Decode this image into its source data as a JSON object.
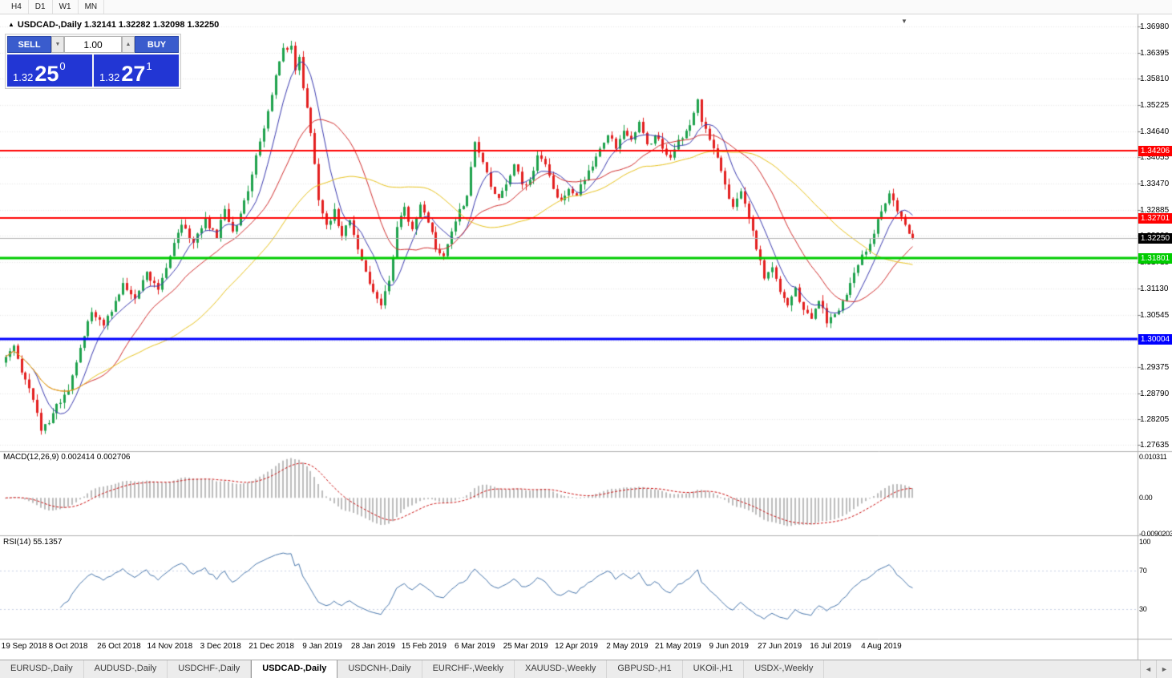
{
  "toolbar": {
    "timeframes": [
      "H4",
      "D1",
      "W1",
      "MN"
    ]
  },
  "chart_header": {
    "arrow": "▲",
    "title": "USDCAD-,Daily  1.32141 1.32282 1.32098 1.32250",
    "shift_marker": "▼"
  },
  "trade_panel": {
    "sell_label": "SELL",
    "buy_label": "BUY",
    "volume": "1.00",
    "spinner_down": "▼",
    "spinner_up": "▲",
    "sell_price": {
      "prefix": "1.32",
      "big": "25",
      "sup": "0"
    },
    "buy_price": {
      "prefix": "1.32",
      "big": "27",
      "sup": "1"
    }
  },
  "price_scale": {
    "labels": [
      "1.36980",
      "1.36395",
      "1.35810",
      "1.35225",
      "1.34640",
      "1.34055",
      "1.33470",
      "1.32885",
      "1.32300",
      "1.31715",
      "1.31130",
      "1.30545",
      "1.29960",
      "1.29375",
      "1.28790",
      "1.28205",
      "1.27635"
    ],
    "current_price_tag": {
      "label": "1.32250",
      "price": 1.3225,
      "bg": "#000000"
    }
  },
  "levels": [
    {
      "label": "1.34206",
      "price": 1.34206,
      "color": "#ff0000",
      "width": 2
    },
    {
      "label": "1.32701",
      "price": 1.32701,
      "color": "#ff0000",
      "width": 2
    },
    {
      "label": "1.31801",
      "price": 1.31801,
      "color": "#00cc00",
      "width": 3
    },
    {
      "label": "1.30004",
      "price": 1.30004,
      "color": "#0000ff",
      "width": 3
    }
  ],
  "indicators": {
    "macd": {
      "label": "MACD(12,26,9) 0.002414 0.002706",
      "scale_labels": [
        "0.010311",
        "0.00",
        "-0.0090203"
      ],
      "histogram_color": "#bdbdbd",
      "signal_color": "#cc1111"
    },
    "rsi": {
      "label": "RSI(14) 55.1357",
      "scale_labels": [
        "100",
        "70",
        "30"
      ],
      "line_color": "#4a78ad",
      "levels": [
        70,
        30
      ]
    }
  },
  "time_axis": {
    "dates": [
      "19 Sep 2018",
      "8 Oct 2018",
      "26 Oct 2018",
      "14 Nov 2018",
      "3 Dec 2018",
      "21 Dec 2018",
      "9 Jan 2019",
      "28 Jan 2019",
      "15 Feb 2019",
      "6 Mar 2019",
      "25 Mar 2019",
      "12 Apr 2019",
      "2 May 2019",
      "21 May 2019",
      "9 Jun 2019",
      "27 Jun 2019",
      "16 Jul 2019",
      "4 Aug 2019"
    ],
    "date_bar_indices": [
      3,
      16,
      29,
      42,
      55,
      68,
      81,
      94,
      107,
      120,
      133,
      146,
      159,
      172,
      185,
      198,
      211,
      224
    ]
  },
  "chart_data": {
    "type": "candlestick",
    "symbol": "USDCAD",
    "timeframe": "Daily",
    "ohlc_today": {
      "open": 1.32141,
      "high": 1.32282,
      "low": 1.32098,
      "close": 1.3225
    },
    "y_axis_range": [
      1.2753,
      1.3718
    ],
    "bar_count": 233,
    "up_color": "#1fa24d",
    "down_color": "#e32020",
    "moving_averages": [
      {
        "period": 8,
        "color": "#3b3bb0"
      },
      {
        "period": 21,
        "color": "#d23030"
      },
      {
        "period": 45,
        "color": "#e8c31e"
      }
    ],
    "close_keypoints": [
      [
        0,
        1.296
      ],
      [
        2,
        1.2985
      ],
      [
        4,
        1.2925
      ],
      [
        6,
        1.289
      ],
      [
        8,
        1.2835
      ],
      [
        9,
        1.2795
      ],
      [
        11,
        1.2812
      ],
      [
        13,
        1.2855
      ],
      [
        16,
        1.2885
      ],
      [
        19,
        1.298
      ],
      [
        22,
        1.306
      ],
      [
        25,
        1.303
      ],
      [
        28,
        1.3085
      ],
      [
        30,
        1.3125
      ],
      [
        33,
        1.309
      ],
      [
        36,
        1.315
      ],
      [
        39,
        1.311
      ],
      [
        42,
        1.3185
      ],
      [
        45,
        1.3255
      ],
      [
        48,
        1.3215
      ],
      [
        51,
        1.327
      ],
      [
        54,
        1.3225
      ],
      [
        56,
        1.329
      ],
      [
        58,
        1.324
      ],
      [
        60,
        1.328
      ],
      [
        62,
        1.333
      ],
      [
        64,
        1.341
      ],
      [
        66,
        1.347
      ],
      [
        68,
        1.3545
      ],
      [
        70,
        1.362
      ],
      [
        71,
        1.365
      ],
      [
        73,
        1.3655
      ],
      [
        74,
        1.36
      ],
      [
        75,
        1.363
      ],
      [
        76,
        1.356
      ],
      [
        78,
        1.346
      ],
      [
        80,
        1.331
      ],
      [
        82,
        1.3255
      ],
      [
        84,
        1.329
      ],
      [
        86,
        1.323
      ],
      [
        88,
        1.3265
      ],
      [
        90,
        1.32
      ],
      [
        92,
        1.315
      ],
      [
        94,
        1.3105
      ],
      [
        96,
        1.3075
      ],
      [
        98,
        1.313
      ],
      [
        100,
        1.325
      ],
      [
        102,
        1.3295
      ],
      [
        104,
        1.3245
      ],
      [
        106,
        1.33
      ],
      [
        108,
        1.326
      ],
      [
        110,
        1.32
      ],
      [
        112,
        1.3185
      ],
      [
        114,
        1.324
      ],
      [
        116,
        1.329
      ],
      [
        118,
        1.332
      ],
      [
        120,
        1.344
      ],
      [
        122,
        1.3395
      ],
      [
        124,
        1.334
      ],
      [
        126,
        1.3315
      ],
      [
        128,
        1.3345
      ],
      [
        130,
        1.339
      ],
      [
        132,
        1.3345
      ],
      [
        134,
        1.3355
      ],
      [
        136,
        1.341
      ],
      [
        138,
        1.339
      ],
      [
        140,
        1.3335
      ],
      [
        142,
        1.331
      ],
      [
        144,
        1.3335
      ],
      [
        146,
        1.332
      ],
      [
        148,
        1.3355
      ],
      [
        150,
        1.3385
      ],
      [
        152,
        1.3425
      ],
      [
        154,
        1.3455
      ],
      [
        156,
        1.3425
      ],
      [
        158,
        1.3465
      ],
      [
        160,
        1.3445
      ],
      [
        162,
        1.3485
      ],
      [
        164,
        1.3435
      ],
      [
        166,
        1.3455
      ],
      [
        168,
        1.3425
      ],
      [
        170,
        1.3405
      ],
      [
        172,
        1.3445
      ],
      [
        174,
        1.3465
      ],
      [
        176,
        1.3505
      ],
      [
        177,
        1.3535
      ],
      [
        178,
        1.3485
      ],
      [
        180,
        1.3445
      ],
      [
        182,
        1.3405
      ],
      [
        184,
        1.3345
      ],
      [
        186,
        1.3295
      ],
      [
        188,
        1.333
      ],
      [
        190,
        1.327
      ],
      [
        192,
        1.32
      ],
      [
        194,
        1.3135
      ],
      [
        196,
        1.316
      ],
      [
        198,
        1.3105
      ],
      [
        200,
        1.3075
      ],
      [
        202,
        1.3115
      ],
      [
        204,
        1.3065
      ],
      [
        206,
        1.3045
      ],
      [
        208,
        1.3085
      ],
      [
        210,
        1.3035
      ],
      [
        212,
        1.3055
      ],
      [
        214,
        1.3085
      ],
      [
        216,
        1.3125
      ],
      [
        218,
        1.3165
      ],
      [
        220,
        1.3195
      ],
      [
        222,
        1.3235
      ],
      [
        224,
        1.3285
      ],
      [
        226,
        1.3325
      ],
      [
        228,
        1.3285
      ],
      [
        230,
        1.3255
      ],
      [
        231,
        1.3235
      ],
      [
        232,
        1.3225
      ]
    ]
  },
  "bottom_tabs": {
    "items": [
      "EURUSD-,Daily",
      "AUDUSD-,Daily",
      "USDCHF-,Daily",
      "USDCAD-,Daily",
      "USDCNH-,Daily",
      "EURCHF-,Weekly",
      "XAUUSD-,Weekly",
      "GBPUSD-,H1",
      "UKOil-,H1",
      "USDX-,Weekly"
    ],
    "active_index": 3,
    "scroll_left": "◄",
    "scroll_right": "►"
  }
}
